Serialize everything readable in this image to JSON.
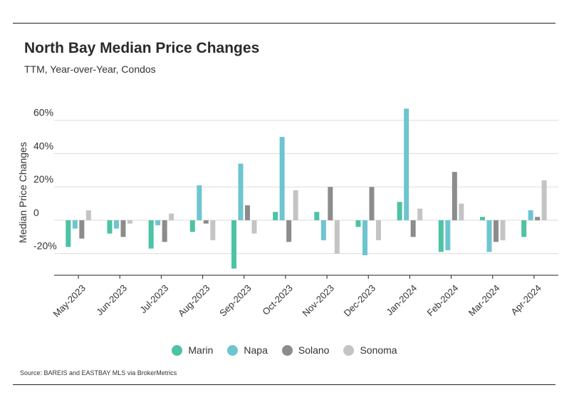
{
  "header": {
    "title": "North Bay Median Price Changes",
    "subtitle": "TTM, Year-over-Year, Condos"
  },
  "footer": {
    "source": "Source:  BAREIS and EASTBAY MLS via BrokerMetrics"
  },
  "chart_data": {
    "type": "bar",
    "title": "North Bay Median Price Changes",
    "subtitle": "TTM, Year-over-Year, Condos",
    "xlabel": "",
    "ylabel": "Median Price Changes",
    "ylim": [
      -33,
      68
    ],
    "yticks": [
      60,
      40,
      20,
      0,
      -20
    ],
    "ytick_labels": [
      "60%",
      "40%",
      "20%",
      "0",
      "-20%"
    ],
    "grid": true,
    "legend_position": "bottom",
    "categories": [
      "May-2023",
      "Jun-2023",
      "Jul-2023",
      "Aug-2023",
      "Sep-2023",
      "Oct-2023",
      "Nov-2023",
      "Dec-2023",
      "Jan-2024",
      "Feb-2024",
      "Mar-2024",
      "Apr-2024"
    ],
    "series": [
      {
        "name": "Marin",
        "color": "#4dc2a5",
        "values": [
          -16,
          -8,
          -17,
          -7,
          -29,
          5,
          5,
          -4,
          11,
          -19,
          2,
          -10
        ]
      },
      {
        "name": "Napa",
        "color": "#6dc5d0",
        "values": [
          -5,
          -5,
          -3,
          21,
          34,
          50,
          -12,
          -21,
          67,
          -18,
          -19,
          6
        ]
      },
      {
        "name": "Solano",
        "color": "#8c8c8c",
        "values": [
          -11,
          -10,
          -13,
          -2,
          9,
          -13,
          20,
          20,
          -10,
          29,
          -13,
          2
        ]
      },
      {
        "name": "Sonoma",
        "color": "#c4c4c4",
        "values": [
          6,
          -2,
          4,
          -12,
          -8,
          18,
          -20,
          -12,
          7,
          10,
          -12,
          24
        ]
      }
    ]
  }
}
